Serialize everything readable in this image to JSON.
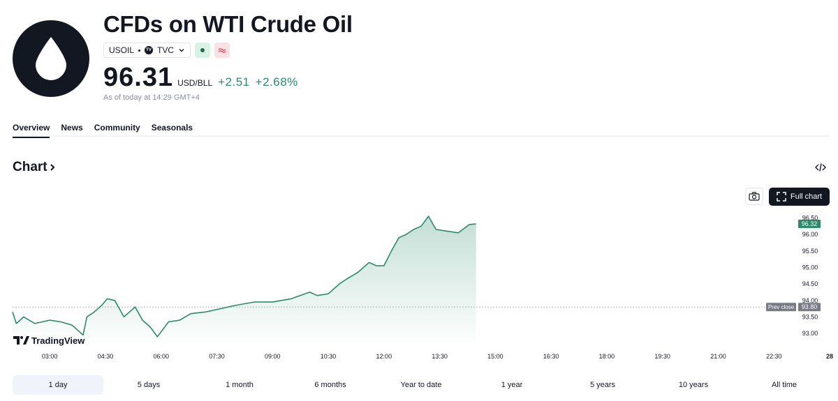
{
  "header": {
    "title": "CFDs on WTI Crude Oil",
    "symbol": "USOIL",
    "exchange_badge": "TV",
    "exchange": "TVC",
    "market_status_icon": "market-open-dot-icon",
    "feed_icon": "realtime-wave-icon",
    "price": "96.31",
    "currency": "USD/BLL",
    "change": "+2.51",
    "change_pct": "+2.68%",
    "as_of": "As of today at 14:29 GMT+4"
  },
  "tabs": [
    "Overview",
    "News",
    "Community",
    "Seasonals"
  ],
  "active_tab": "Overview",
  "chart_section": {
    "title": "Chart",
    "full_chart_label": "Full chart",
    "watermark": "TradingView",
    "colors": {
      "line": "#2a8a6a",
      "fill": "#2a8a6a",
      "axis": "#131722",
      "prev_close": "#b2b5be",
      "last_label_bg": "#2a8a6a"
    }
  },
  "ranges": [
    "1 day",
    "5 days",
    "1 month",
    "6 months",
    "Year to date",
    "1 year",
    "5 years",
    "10 years",
    "All time"
  ],
  "active_range": "1 day",
  "chart_data": {
    "type": "area",
    "x_ticks": [
      "03:00",
      "04:30",
      "06:00",
      "07:30",
      "09:00",
      "10:30",
      "12:00",
      "13:30",
      "15:00",
      "16:30",
      "18:00",
      "19:30",
      "21:00",
      "22:30",
      "28"
    ],
    "y_ticks": [
      "93.00",
      "93.50",
      "94.00",
      "94.50",
      "95.00",
      "95.50",
      "96.00",
      "96.50"
    ],
    "ylim": [
      92.6,
      96.7
    ],
    "x_hours": [
      2.0,
      2.1,
      2.3,
      2.6,
      3.0,
      3.3,
      3.6,
      3.9,
      4.0,
      4.2,
      4.4,
      4.55,
      4.75,
      5.0,
      5.3,
      5.5,
      5.7,
      5.9,
      6.0,
      6.2,
      6.5,
      6.8,
      7.2,
      7.6,
      8.0,
      8.5,
      9.0,
      9.5,
      10.0,
      10.2,
      10.5,
      10.8,
      11.0,
      11.3,
      11.6,
      11.8,
      12.0,
      12.2,
      12.4,
      12.6,
      12.8,
      13.0,
      13.2,
      13.4,
      13.7,
      14.0,
      14.3,
      14.48
    ],
    "values": [
      93.65,
      93.3,
      93.5,
      93.3,
      93.4,
      93.35,
      93.25,
      92.95,
      93.5,
      93.65,
      93.85,
      94.05,
      94.0,
      93.5,
      93.8,
      93.4,
      93.2,
      92.9,
      93.05,
      93.35,
      93.4,
      93.6,
      93.65,
      93.75,
      93.85,
      93.95,
      93.95,
      94.05,
      94.25,
      94.15,
      94.2,
      94.5,
      94.65,
      94.85,
      95.15,
      95.05,
      95.05,
      95.5,
      95.9,
      96.0,
      96.15,
      96.25,
      96.55,
      96.15,
      96.1,
      96.05,
      96.3,
      96.32
    ],
    "prev_close": 93.8,
    "prev_close_label": "Prev close",
    "last_value": 96.32,
    "prev_close_value_label": "93.80",
    "last_value_label": "96.32",
    "x_range_hours": [
      2.0,
      24.0
    ],
    "grid": false
  }
}
